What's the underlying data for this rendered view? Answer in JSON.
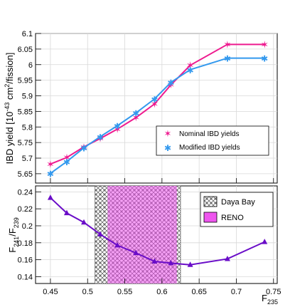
{
  "chart_data": [
    {
      "type": "line",
      "x_values": [
        0.45,
        0.472,
        0.495,
        0.517,
        0.54,
        0.565,
        0.59,
        0.612,
        0.638,
        0.688,
        0.738
      ],
      "series": [
        {
          "name": "Nominal IBD yields",
          "color": "#ee1a8f",
          "marker": "star",
          "values": [
            5.681,
            5.702,
            5.736,
            5.763,
            5.793,
            5.83,
            5.874,
            5.935,
            5.998,
            6.065,
            6.065
          ]
        },
        {
          "name": "Modified IBD yields",
          "color": "#3399ee",
          "marker": "asterisk",
          "values": [
            5.651,
            5.689,
            5.733,
            5.769,
            5.804,
            5.845,
            5.89,
            5.943,
            5.984,
            6.021,
            6.021
          ]
        }
      ],
      "ylabel_main": "IBD yield [10",
      "ylabel_exp": "-43",
      "ylabel_unit": " cm",
      "ylabel_unit_exp": "2",
      "ylabel_tail": "/fission]",
      "ylim": [
        5.62,
        6.1
      ],
      "yticks": [
        "5.65",
        "5.7",
        "5.75",
        "5.8",
        "5.85",
        "5.9",
        "5.95",
        "6",
        "6.05",
        "6.1"
      ],
      "xlim": [
        0.43,
        0.755
      ],
      "grid": true,
      "legend_position": "bottom-right"
    },
    {
      "type": "line",
      "x": [
        0.45,
        0.472,
        0.495,
        0.517,
        0.54,
        0.565,
        0.59,
        0.612,
        0.638,
        0.688,
        0.738
      ],
      "series": [
        {
          "color": "#6a0dc8",
          "marker": "triangle",
          "values": [
            0.233,
            0.215,
            0.204,
            0.19,
            0.177,
            0.168,
            0.158,
            0.156,
            0.154,
            0.161,
            0.181
          ]
        }
      ],
      "bands": [
        {
          "name": "Daya Bay",
          "range": [
            0.51,
            0.625
          ],
          "style": "hatched"
        },
        {
          "name": "RENO",
          "range": [
            0.527,
            0.62
          ],
          "color": "#ee55ee"
        }
      ],
      "ylabel_main": "F",
      "ylabel_sub1": "241",
      "ylabel_slash": "/F",
      "ylabel_sub2": "239",
      "xlabel_main": "F",
      "xlabel_sub": "235",
      "ylim": [
        0.132,
        0.247
      ],
      "yticks": [
        "0.14",
        "0.16",
        "0.18",
        "0.2",
        "0.22",
        "0.24"
      ],
      "xlim": [
        0.43,
        0.755
      ],
      "xticks": [
        "0.45",
        "0.5",
        "0.55",
        "0.6",
        "0.65",
        "0.7",
        "0.75"
      ],
      "grid": true,
      "legend_position": "top-right"
    }
  ]
}
